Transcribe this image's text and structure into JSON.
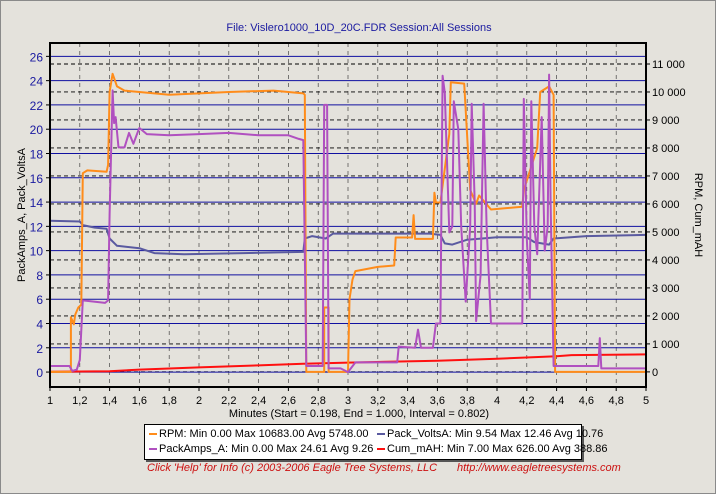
{
  "header": {
    "title": "File: Vislero1000_10D_20C.FDR   Session:All Sessions"
  },
  "chart_data": {
    "type": "line",
    "title": "File: Vislero1000_10D_20C.FDR   Session:All Sessions",
    "xlabel": "Minutes (Start = 0.198,  End = 1.000,  Interval =  0.802)",
    "ylabel": "PackAmps_A, Pack_VoltsA",
    "y2label": "RPM, Cum_mAH",
    "xlim": [
      1,
      5
    ],
    "ylim": [
      -1.23,
      27.1
    ],
    "y2lim": [
      -540,
      11750
    ],
    "grid": true,
    "xticks": [
      "1",
      "1,2",
      "1,4",
      "1,6",
      "1,8",
      "2",
      "2,2",
      "2,4",
      "2,6",
      "2,8",
      "3",
      "3,2",
      "3,4",
      "3,6",
      "3,8",
      "4",
      "4,2",
      "4,4",
      "4,6",
      "4,8",
      "5"
    ],
    "yticks": [
      "0",
      "2",
      "4",
      "6",
      "8",
      "10",
      "12",
      "14",
      "16",
      "18",
      "20",
      "22",
      "24",
      "26"
    ],
    "y2ticks": [
      "0",
      "1 000",
      "2 000",
      "3 000",
      "4 000",
      "5 000",
      "6 000",
      "7 000",
      "8 000",
      "9 000",
      "10 000",
      "11 000"
    ],
    "legend_placement": "bottom",
    "series": [
      {
        "name": "RPM",
        "axis": "right",
        "color": "#ff8c1a",
        "legend": "RPM:  Min 0.00 Max 10683.00 Avg 5748.00",
        "points": [
          [
            1,
            0
          ],
          [
            1.14,
            0
          ],
          [
            1.14,
            1950
          ],
          [
            1.16,
            1700
          ],
          [
            1.17,
            2050
          ],
          [
            1.19,
            2300
          ],
          [
            1.21,
            2400
          ],
          [
            1.22,
            7100
          ],
          [
            1.25,
            7200
          ],
          [
            1.38,
            7150
          ],
          [
            1.39,
            7400
          ],
          [
            1.4,
            10000
          ],
          [
            1.42,
            10650
          ],
          [
            1.45,
            10200
          ],
          [
            1.5,
            10050
          ],
          [
            1.6,
            10000
          ],
          [
            1.8,
            9900
          ],
          [
            2.0,
            9950
          ],
          [
            2.2,
            10000
          ],
          [
            2.5,
            10050
          ],
          [
            2.7,
            9950
          ],
          [
            2.71,
            9900
          ],
          [
            2.72,
            0
          ],
          [
            2.84,
            0
          ],
          [
            2.84,
            2300
          ],
          [
            2.87,
            2300
          ],
          [
            2.87,
            0
          ],
          [
            3.0,
            0
          ],
          [
            3.01,
            2600
          ],
          [
            3.03,
            3300
          ],
          [
            3.05,
            3600
          ],
          [
            3.2,
            3750
          ],
          [
            3.31,
            3800
          ],
          [
            3.32,
            4800
          ],
          [
            3.43,
            4800
          ],
          [
            3.44,
            5600
          ],
          [
            3.45,
            4750
          ],
          [
            3.57,
            4750
          ],
          [
            3.58,
            6400
          ],
          [
            3.59,
            6050
          ],
          [
            3.62,
            6050
          ],
          [
            3.68,
            8500
          ],
          [
            3.69,
            10350
          ],
          [
            3.78,
            10300
          ],
          [
            3.82,
            6500
          ],
          [
            3.86,
            6000
          ],
          [
            3.88,
            6300
          ],
          [
            3.96,
            5800
          ],
          [
            4.17,
            5900
          ],
          [
            4.18,
            6500
          ],
          [
            4.27,
            8000
          ],
          [
            4.29,
            10000
          ],
          [
            4.35,
            10200
          ],
          [
            4.38,
            9900
          ],
          [
            4.39,
            0
          ],
          [
            5,
            0
          ]
        ]
      },
      {
        "name": "Pack_VoltsA",
        "axis": "left",
        "color": "#5a5aa0",
        "legend": "Pack_VoltsA:  Min 9.54 Max 12.46 Avg 10.76",
        "points": [
          [
            1,
            12.46
          ],
          [
            1.2,
            12.4
          ],
          [
            1.22,
            12.1
          ],
          [
            1.3,
            11.9
          ],
          [
            1.38,
            11.8
          ],
          [
            1.4,
            11.0
          ],
          [
            1.45,
            10.4
          ],
          [
            1.6,
            10.2
          ],
          [
            1.7,
            9.8
          ],
          [
            1.9,
            9.7
          ],
          [
            2.3,
            9.8
          ],
          [
            2.7,
            9.9
          ],
          [
            2.71,
            11.0
          ],
          [
            2.76,
            11.2
          ],
          [
            2.85,
            11.0
          ],
          [
            2.9,
            11.4
          ],
          [
            3.2,
            11.4
          ],
          [
            3.55,
            11.4
          ],
          [
            3.62,
            11.3
          ],
          [
            3.65,
            10.6
          ],
          [
            3.7,
            10.5
          ],
          [
            3.8,
            10.9
          ],
          [
            4.0,
            11.1
          ],
          [
            4.2,
            11.1
          ],
          [
            4.25,
            10.7
          ],
          [
            4.35,
            10.5
          ],
          [
            4.38,
            11.0
          ],
          [
            4.6,
            11.2
          ],
          [
            5,
            11.3
          ]
        ]
      },
      {
        "name": "PackAmps_A",
        "axis": "left",
        "color": "#b050c0",
        "legend": "PackAmps_A:  Min 0.00 Max 24.61 Avg 9.26",
        "points": [
          [
            1,
            0.5
          ],
          [
            1.13,
            0.5
          ],
          [
            1.15,
            0.1
          ],
          [
            1.18,
            0.2
          ],
          [
            1.2,
            1.0
          ],
          [
            1.22,
            5.9
          ],
          [
            1.37,
            5.7
          ],
          [
            1.39,
            5.9
          ],
          [
            1.4,
            13
          ],
          [
            1.42,
            23.2
          ],
          [
            1.43,
            20.5
          ],
          [
            1.44,
            21
          ],
          [
            1.46,
            18.5
          ],
          [
            1.5,
            18.5
          ],
          [
            1.53,
            19.7
          ],
          [
            1.56,
            18.8
          ],
          [
            1.59,
            19.8
          ],
          [
            1.6,
            20.1
          ],
          [
            1.65,
            19.6
          ],
          [
            1.8,
            19.5
          ],
          [
            2.0,
            19.6
          ],
          [
            2.2,
            19.7
          ],
          [
            2.4,
            19.5
          ],
          [
            2.6,
            19.5
          ],
          [
            2.67,
            19.2
          ],
          [
            2.7,
            19.1
          ],
          [
            2.72,
            0.5
          ],
          [
            2.83,
            0.5
          ],
          [
            2.84,
            22
          ],
          [
            2.86,
            22
          ],
          [
            2.87,
            0.3
          ],
          [
            2.95,
            0.3
          ],
          [
            3.0,
            0
          ],
          [
            3.05,
            0.8
          ],
          [
            3.33,
            0.8
          ],
          [
            3.34,
            2.1
          ],
          [
            3.45,
            2.0
          ],
          [
            3.47,
            3.5
          ],
          [
            3.49,
            2.0
          ],
          [
            3.57,
            2.0
          ],
          [
            3.59,
            4.0
          ],
          [
            3.62,
            4.0
          ],
          [
            3.635,
            24.4
          ],
          [
            3.65,
            23
          ],
          [
            3.68,
            11.5
          ],
          [
            3.7,
            12
          ],
          [
            3.71,
            22.3
          ],
          [
            3.74,
            20
          ],
          [
            3.76,
            12
          ],
          [
            3.79,
            5.8
          ],
          [
            3.82,
            12
          ],
          [
            3.83,
            22.1
          ],
          [
            3.85,
            14
          ],
          [
            3.86,
            4.2
          ],
          [
            3.89,
            8
          ],
          [
            3.91,
            22.1
          ],
          [
            3.93,
            12
          ],
          [
            3.96,
            4.0
          ],
          [
            4.17,
            4.0
          ],
          [
            4.18,
            22.5
          ],
          [
            4.2,
            11
          ],
          [
            4.22,
            6
          ],
          [
            4.23,
            22.3
          ],
          [
            4.25,
            12
          ],
          [
            4.27,
            9.7
          ],
          [
            4.3,
            21
          ],
          [
            4.32,
            10
          ],
          [
            4.34,
            12
          ],
          [
            4.35,
            24.5
          ],
          [
            4.36,
            14
          ],
          [
            4.38,
            0.5
          ],
          [
            4.68,
            0.5
          ],
          [
            4.69,
            2.8
          ],
          [
            4.7,
            0.3
          ],
          [
            5,
            0.3
          ]
        ]
      },
      {
        "name": "Cum_mAH",
        "axis": "right",
        "color": "#ff1010",
        "legend": "Cum_mAH:  Min 7.00 Max 626.00 Avg 388.86",
        "points": [
          [
            1,
            7
          ],
          [
            1.4,
            20
          ],
          [
            1.6,
            80
          ],
          [
            2.0,
            160
          ],
          [
            2.4,
            230
          ],
          [
            2.7,
            290
          ],
          [
            3.0,
            330
          ],
          [
            3.6,
            400
          ],
          [
            4.0,
            470
          ],
          [
            4.4,
            560
          ],
          [
            4.5,
            600
          ],
          [
            5,
            626
          ]
        ]
      }
    ]
  },
  "footer": {
    "help": "Click 'Help' for Info  (c) 2003-2006 Eagle Tree Systems, LLC",
    "url": "http://www.eagletreesystems.com"
  }
}
